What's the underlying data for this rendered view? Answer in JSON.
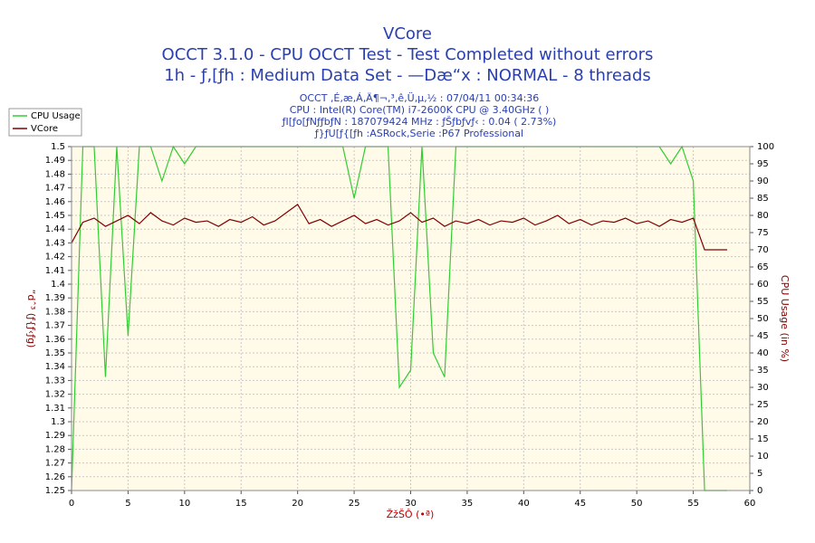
{
  "chart_data": {
    "type": "line",
    "title": "VCore",
    "subtitle": [
      "OCCT 3.1.0 - CPU OCCT Test - Test Completed without errors",
      "1h - ƒ‚[ƒh : Medium Data Set - —Dæ“x : NORMAL - 8 threads"
    ],
    "info": [
      "OCCT ‚É‚æ‚Á‚Ä¶¬‚³‚ê‚Ü‚µ‚½ : 07/04/11 00:34:36",
      "CPU : Intel(R) Core(TM) i7-2600K CPU @ 3.40GHz (  )",
      "ƒI[ƒo[ƒNƒƒbƒN : 187079424 MHz : ƒŠƒbƒvƒ‹ : 0.04 ( 2.73%)",
      "ƒ}ƒU[ƒ{[ƒh :ASRock,Serie :P67 Professional"
    ],
    "x_label": "ŽžŠÔ (•ª)",
    "y_label": "“dˆ³ (ƒ{ƒ‹ƒg)",
    "y2_label": "CPU Usage (in %)",
    "x": [
      0,
      1,
      2,
      3,
      4,
      5,
      6,
      7,
      8,
      9,
      10,
      11,
      12,
      13,
      14,
      15,
      16,
      17,
      18,
      19,
      20,
      21,
      22,
      23,
      24,
      25,
      26,
      27,
      28,
      29,
      30,
      31,
      32,
      33,
      34,
      35,
      36,
      37,
      38,
      39,
      40,
      41,
      42,
      43,
      44,
      45,
      46,
      47,
      48,
      49,
      50,
      51,
      52,
      53,
      54,
      55,
      56,
      57,
      58
    ],
    "series": [
      {
        "name": "CPU Usage",
        "color": "#33cc33",
        "axis": "y2",
        "values": [
          0,
          100,
          100,
          33,
          100,
          45,
          100,
          100,
          90,
          100,
          95,
          100,
          100,
          100,
          100,
          100,
          100,
          100,
          100,
          100,
          100,
          100,
          100,
          100,
          100,
          85,
          100,
          100,
          100,
          30,
          35,
          100,
          40,
          33,
          100,
          100,
          100,
          100,
          100,
          100,
          100,
          100,
          100,
          100,
          100,
          100,
          100,
          100,
          100,
          100,
          100,
          100,
          100,
          95,
          100,
          90,
          0,
          0,
          0
        ]
      },
      {
        "name": "VCore",
        "color": "#800000",
        "axis": "y",
        "values": [
          1.43,
          1.445,
          1.448,
          1.442,
          1.446,
          1.45,
          1.444,
          1.452,
          1.446,
          1.443,
          1.448,
          1.445,
          1.446,
          1.442,
          1.447,
          1.445,
          1.449,
          1.443,
          1.446,
          1.452,
          1.458,
          1.444,
          1.447,
          1.442,
          1.446,
          1.45,
          1.444,
          1.447,
          1.443,
          1.446,
          1.452,
          1.445,
          1.448,
          1.442,
          1.446,
          1.444,
          1.447,
          1.443,
          1.446,
          1.445,
          1.448,
          1.443,
          1.446,
          1.45,
          1.444,
          1.447,
          1.443,
          1.446,
          1.445,
          1.448,
          1.444,
          1.446,
          1.442,
          1.447,
          1.445,
          1.448,
          1.425,
          1.425,
          1.425
        ]
      }
    ],
    "xlim": [
      0,
      60
    ],
    "xticks": [
      0,
      5,
      10,
      15,
      20,
      25,
      30,
      35,
      40,
      45,
      50,
      55,
      60
    ],
    "ylim": [
      1.25,
      1.5
    ],
    "yticks": [
      1.25,
      1.26,
      1.27,
      1.28,
      1.29,
      1.3,
      1.31,
      1.32,
      1.33,
      1.34,
      1.35,
      1.36,
      1.37,
      1.38,
      1.39,
      1.4,
      1.41,
      1.42,
      1.43,
      1.44,
      1.45,
      1.46,
      1.47,
      1.48,
      1.49,
      1.5
    ],
    "y2lim": [
      0,
      100
    ],
    "y2ticks": [
      0,
      5,
      10,
      15,
      20,
      25,
      30,
      35,
      40,
      45,
      50,
      55,
      60,
      65,
      70,
      75,
      80,
      85,
      90,
      95,
      100
    ],
    "grid": true,
    "legend": "top-left"
  }
}
